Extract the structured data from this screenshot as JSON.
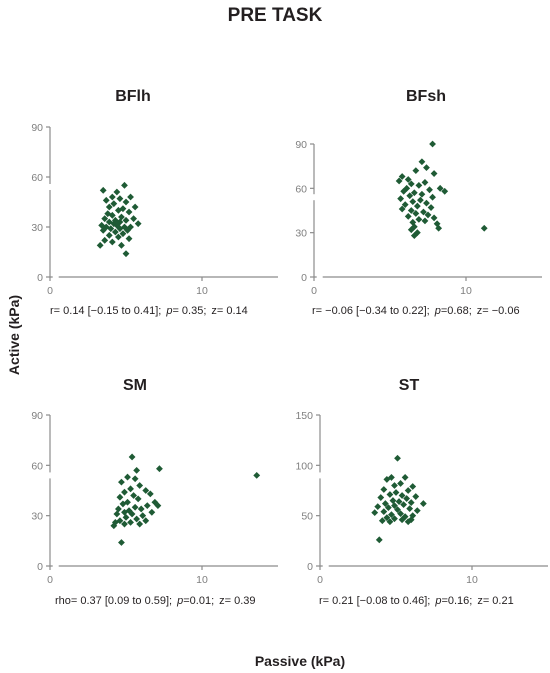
{
  "title": "PRE TASK",
  "ylabel": "Active (kPa)",
  "xlabel": "Passive (kPa)",
  "colors": {
    "point": "#1f5b35",
    "axis": "#8c8c8c",
    "tick": "#7f7f7f",
    "text": "#231f20"
  },
  "chart_data": [
    {
      "type": "scatter",
      "title": "BFlh",
      "xlim": [
        0,
        15
      ],
      "ylim": [
        0,
        90
      ],
      "xticks": [
        "0",
        "10"
      ],
      "yticks": [
        "0",
        "30",
        "60",
        "90"
      ],
      "stats": {
        "coef": "r= 0.14 [−0.15 to 0.41];",
        "p_label": "p",
        "p_value": "= 0.35;",
        "z": "z= 0.14"
      },
      "points": [
        [
          4.9,
          55
        ],
        [
          3.5,
          52
        ],
        [
          4.4,
          51
        ],
        [
          4.1,
          48
        ],
        [
          5.3,
          48
        ],
        [
          4.6,
          47
        ],
        [
          3.7,
          46
        ],
        [
          5.0,
          45
        ],
        [
          4.2,
          44
        ],
        [
          5.6,
          42
        ],
        [
          3.9,
          42
        ],
        [
          4.8,
          41
        ],
        [
          4.5,
          40
        ],
        [
          5.2,
          39
        ],
        [
          3.8,
          38
        ],
        [
          4.1,
          37
        ],
        [
          4.7,
          36
        ],
        [
          5.5,
          35
        ],
        [
          3.6,
          35
        ],
        [
          4.3,
          34
        ],
        [
          5.0,
          34
        ],
        [
          4.6,
          33
        ],
        [
          3.9,
          33
        ],
        [
          5.8,
          32
        ],
        [
          4.2,
          32
        ],
        [
          3.4,
          31
        ],
        [
          4.4,
          31
        ],
        [
          4.9,
          30
        ],
        [
          5.3,
          30
        ],
        [
          3.7,
          30
        ],
        [
          4.0,
          29
        ],
        [
          4.6,
          29
        ],
        [
          5.1,
          28
        ],
        [
          3.5,
          28
        ],
        [
          4.3,
          27
        ],
        [
          4.8,
          26
        ],
        [
          3.9,
          25
        ],
        [
          4.5,
          24
        ],
        [
          5.2,
          23
        ],
        [
          3.6,
          22
        ],
        [
          4.1,
          21
        ],
        [
          3.3,
          19
        ],
        [
          4.7,
          19
        ],
        [
          5.0,
          14
        ]
      ]
    },
    {
      "type": "scatter",
      "title": "BFsh",
      "xlim": [
        0,
        15
      ],
      "ylim": [
        0,
        90
      ],
      "xticks": [
        "0",
        "10"
      ],
      "yticks": [
        "0",
        "30",
        "60",
        "90"
      ],
      "stats": {
        "coef": "r= −0.06 [−0.34 to 0.22];",
        "p_label": "p",
        "p_value": "=0.68;",
        "z": "z= −0.06"
      },
      "points": [
        [
          7.8,
          90
        ],
        [
          7.1,
          78
        ],
        [
          7.4,
          74
        ],
        [
          6.7,
          72
        ],
        [
          7.9,
          70
        ],
        [
          5.8,
          68
        ],
        [
          6.2,
          66
        ],
        [
          5.6,
          65
        ],
        [
          7.3,
          64
        ],
        [
          6.4,
          63
        ],
        [
          6.9,
          62
        ],
        [
          8.3,
          60
        ],
        [
          6.1,
          60
        ],
        [
          7.6,
          59
        ],
        [
          8.6,
          58
        ],
        [
          5.9,
          58
        ],
        [
          6.6,
          57
        ],
        [
          7.1,
          56
        ],
        [
          6.3,
          55
        ],
        [
          7.8,
          54
        ],
        [
          5.7,
          53
        ],
        [
          7.0,
          52
        ],
        [
          6.5,
          51
        ],
        [
          7.4,
          50
        ],
        [
          6.0,
          49
        ],
        [
          6.8,
          48
        ],
        [
          7.7,
          47
        ],
        [
          5.8,
          46
        ],
        [
          6.4,
          45
        ],
        [
          7.2,
          44
        ],
        [
          6.7,
          43
        ],
        [
          7.5,
          42
        ],
        [
          6.2,
          41
        ],
        [
          7.9,
          40
        ],
        [
          6.9,
          39
        ],
        [
          7.3,
          38
        ],
        [
          6.5,
          37
        ],
        [
          8.1,
          36
        ],
        [
          6.6,
          34
        ],
        [
          8.2,
          33
        ],
        [
          6.4,
          32
        ],
        [
          6.8,
          30
        ],
        [
          6.6,
          28
        ],
        [
          11.2,
          33
        ]
      ]
    },
    {
      "type": "scatter",
      "title": "SM",
      "xlim": [
        0,
        15
      ],
      "ylim": [
        0,
        90
      ],
      "xticks": [
        "0",
        "10"
      ],
      "yticks": [
        "0",
        "30",
        "60",
        "90"
      ],
      "stats": {
        "coef": "rho= 0.37 [0.09 to 0.59];",
        "p_label": "p",
        "p_value": "=0.01;",
        "z": "z= 0.39"
      },
      "points": [
        [
          5.4,
          65
        ],
        [
          7.2,
          58
        ],
        [
          5.7,
          57
        ],
        [
          5.1,
          53
        ],
        [
          5.6,
          52
        ],
        [
          4.7,
          50
        ],
        [
          5.9,
          48
        ],
        [
          5.3,
          46
        ],
        [
          6.3,
          45
        ],
        [
          4.9,
          44
        ],
        [
          6.6,
          43
        ],
        [
          5.5,
          42
        ],
        [
          4.6,
          41
        ],
        [
          5.8,
          40
        ],
        [
          6.9,
          38
        ],
        [
          5.1,
          38
        ],
        [
          4.8,
          37
        ],
        [
          6.4,
          36
        ],
        [
          7.1,
          36
        ],
        [
          5.6,
          35
        ],
        [
          4.5,
          34
        ],
        [
          6.0,
          34
        ],
        [
          5.2,
          33
        ],
        [
          4.9,
          32
        ],
        [
          6.7,
          32
        ],
        [
          5.4,
          31
        ],
        [
          4.4,
          31
        ],
        [
          6.1,
          30
        ],
        [
          5.0,
          29
        ],
        [
          5.7,
          28
        ],
        [
          4.6,
          27
        ],
        [
          6.3,
          27
        ],
        [
          5.3,
          26
        ],
        [
          4.3,
          26
        ],
        [
          5.9,
          25
        ],
        [
          4.9,
          25
        ],
        [
          4.2,
          24
        ],
        [
          4.7,
          14
        ],
        [
          13.6,
          54
        ]
      ]
    },
    {
      "type": "scatter",
      "title": "ST",
      "xlim": [
        0,
        15
      ],
      "ylim": [
        0,
        150
      ],
      "xticks": [
        "0",
        "10"
      ],
      "yticks": [
        "0",
        "50",
        "100",
        "150"
      ],
      "stats": {
        "coef": "r= 0.21 [−0.08 to 0.46];",
        "p_label": "p",
        "p_value": "=0.16;",
        "z": "z= 0.21"
      },
      "points": [
        [
          5.1,
          107
        ],
        [
          4.7,
          88
        ],
        [
          5.6,
          88
        ],
        [
          4.4,
          86
        ],
        [
          5.3,
          82
        ],
        [
          4.9,
          80
        ],
        [
          6.1,
          79
        ],
        [
          4.2,
          76
        ],
        [
          5.8,
          75
        ],
        [
          5.0,
          73
        ],
        [
          4.6,
          71
        ],
        [
          5.4,
          70
        ],
        [
          6.3,
          69
        ],
        [
          4.0,
          68
        ],
        [
          5.7,
          67
        ],
        [
          4.8,
          65
        ],
        [
          5.2,
          64
        ],
        [
          6.0,
          63
        ],
        [
          4.3,
          62
        ],
        [
          6.8,
          62
        ],
        [
          5.5,
          61
        ],
        [
          4.9,
          60
        ],
        [
          3.8,
          59
        ],
        [
          4.5,
          58
        ],
        [
          5.9,
          57
        ],
        [
          5.1,
          56
        ],
        [
          6.4,
          55
        ],
        [
          4.2,
          54
        ],
        [
          3.6,
          53
        ],
        [
          5.3,
          52
        ],
        [
          4.7,
          51
        ],
        [
          6.1,
          50
        ],
        [
          5.6,
          49
        ],
        [
          4.4,
          48
        ],
        [
          4.9,
          47
        ],
        [
          5.4,
          46
        ],
        [
          6.0,
          46
        ],
        [
          4.1,
          45
        ],
        [
          5.8,
          44
        ],
        [
          4.6,
          44
        ],
        [
          3.9,
          26
        ]
      ]
    }
  ]
}
